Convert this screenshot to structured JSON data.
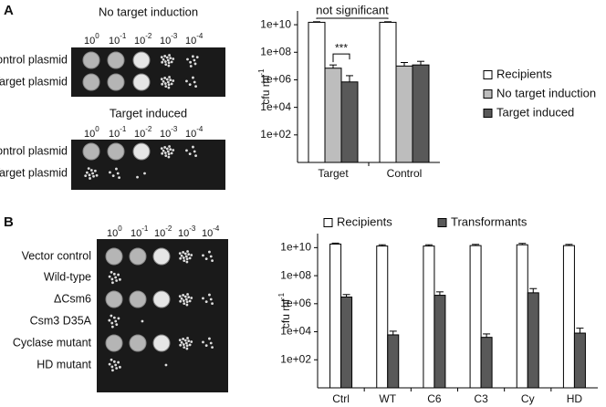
{
  "panels": [
    {
      "letter": "A",
      "plates": [
        {
          "title": "No target induction",
          "dilution_base": "10",
          "dilution_exponents": [
            "0",
            "-1",
            "-2",
            "-3",
            "-4"
          ],
          "rows": [
            "Control plasmid",
            "Target plasmid"
          ]
        },
        {
          "title": "Target induced",
          "dilution_base": "10",
          "dilution_exponents": [
            "0",
            "-1",
            "-2",
            "-3",
            "-4"
          ],
          "rows": [
            "Control plasmid",
            "Target plasmid"
          ]
        }
      ]
    },
    {
      "letter": "B",
      "plates": [
        {
          "dilution_base": "10",
          "dilution_exponents": [
            "0",
            "-1",
            "-2",
            "-3",
            "-4"
          ],
          "rows": [
            "Vector control",
            "Wild-type",
            "ΔCsm6",
            "Csm3 D35A",
            "Cyclase mutant",
            "HD mutant"
          ]
        }
      ]
    }
  ],
  "chart_data": [
    {
      "type": "bar",
      "log_scale": true,
      "ylabel": "cfu ml",
      "ylabel_superscript": "-1",
      "legend": "right",
      "categories": [
        "Target",
        "Control"
      ],
      "series": [
        {
          "name": "Recipients",
          "color": "#ffffff",
          "values": [
            15000000000,
            15000000000
          ],
          "errors": [
            1500000000,
            1500000000
          ]
        },
        {
          "name": "No target induction",
          "color": "#bdbdbd",
          "values": [
            7000000,
            10000000
          ],
          "errors": [
            5000000,
            8000000
          ]
        },
        {
          "name": "Target induced",
          "color": "#595959",
          "values": [
            700000,
            12000000
          ],
          "errors": [
            1300000,
            10000000
          ]
        }
      ],
      "annotations": [
        "not significant",
        "***"
      ],
      "ylim": [
        1,
        100000000000
      ],
      "yticks": [
        {
          "value": 100,
          "label": "1e+02"
        },
        {
          "value": 10000,
          "label": "1e+04"
        },
        {
          "value": 1000000,
          "label": "1e+06"
        },
        {
          "value": 100000000,
          "label": "1e+08"
        },
        {
          "value": 10000000000,
          "label": "1e+10"
        }
      ]
    },
    {
      "type": "bar",
      "log_scale": true,
      "ylabel": "cfu ml",
      "ylabel_superscript": "-1",
      "legend": "top",
      "categories": [
        "Ctrl",
        "WT",
        "C6",
        "C3",
        "Cy",
        "HD"
      ],
      "series": [
        {
          "name": "Recipients",
          "color": "#ffffff",
          "values": [
            18000000000,
            13000000000,
            13000000000,
            14000000000,
            16000000000,
            14000000000
          ],
          "errors": [
            3000000000,
            3000000000,
            3000000000,
            3000000000,
            4000000000,
            3000000000
          ]
        },
        {
          "name": "Transformants",
          "color": "#595959",
          "values": [
            3000000,
            6000,
            4000000,
            4000,
            6000000,
            8000
          ],
          "errors": [
            1500000,
            5000,
            3000000,
            3000,
            6000000,
            10000
          ]
        }
      ],
      "ylim": [
        1,
        100000000000
      ],
      "yticks": [
        {
          "value": 100,
          "label": "1e+02"
        },
        {
          "value": 10000,
          "label": "1e+04"
        },
        {
          "value": 1000000,
          "label": "1e+06"
        },
        {
          "value": 100000000,
          "label": "1e+08"
        },
        {
          "value": 10000000000,
          "label": "1e+10"
        }
      ]
    }
  ]
}
